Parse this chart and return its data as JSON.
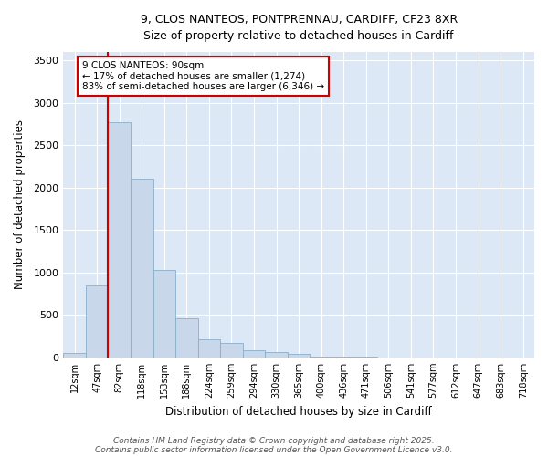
{
  "title_line1": "9, CLOS NANTEOS, PONTPRENNAU, CARDIFF, CF23 8XR",
  "title_line2": "Size of property relative to detached houses in Cardiff",
  "xlabel": "Distribution of detached houses by size in Cardiff",
  "ylabel": "Number of detached properties",
  "bar_labels": [
    "12sqm",
    "47sqm",
    "82sqm",
    "118sqm",
    "153sqm",
    "188sqm",
    "224sqm",
    "259sqm",
    "294sqm",
    "330sqm",
    "365sqm",
    "400sqm",
    "436sqm",
    "471sqm",
    "506sqm",
    "541sqm",
    "577sqm",
    "612sqm",
    "647sqm",
    "683sqm",
    "718sqm"
  ],
  "bar_values": [
    55,
    850,
    2770,
    2100,
    1030,
    455,
    215,
    165,
    85,
    65,
    45,
    10,
    8,
    5,
    3,
    3,
    3,
    3,
    3,
    3,
    3
  ],
  "bar_color": "#c8d8ea",
  "bar_edge_color": "#8aafc8",
  "vline_color": "#cc0000",
  "annotation_text": "9 CLOS NANTEOS: 90sqm\n← 17% of detached houses are smaller (1,274)\n83% of semi-detached houses are larger (6,346) →",
  "annotation_box_facecolor": "white",
  "annotation_box_edgecolor": "#cc0000",
  "ylim": [
    0,
    3600
  ],
  "yticks": [
    0,
    500,
    1000,
    1500,
    2000,
    2500,
    3000,
    3500
  ],
  "fig_bg_color": "#ffffff",
  "plot_bg_color": "#dce8f5",
  "grid_color": "#ffffff",
  "footer_line1": "Contains HM Land Registry data © Crown copyright and database right 2025.",
  "footer_line2": "Contains public sector information licensed under the Open Government Licence v3.0."
}
